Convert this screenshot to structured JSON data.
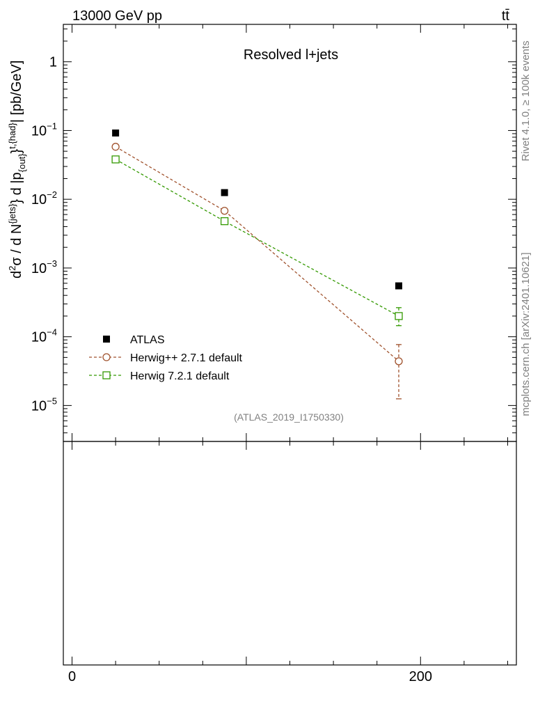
{
  "header": {
    "energy_label": "13000 GeV pp",
    "process_label": "tt̄"
  },
  "side_labels": {
    "rivet": "Rivet 4.1.0, ≥ 100k events",
    "mcplots": "mcplots.cern.ch [arXiv:2401.10621]"
  },
  "chart_data": {
    "type": "line",
    "title": "Resolved l+jets",
    "analysis_id": "(ATLAS_2019_I1750330)",
    "yscale": "log",
    "ylim": [
      3e-06,
      3.5
    ],
    "xlim": [
      -5,
      255
    ],
    "ylabel_parts": {
      "d": "d",
      "two": "2",
      "sigma_over": "σ / d N",
      "jets_sup": "{jets}",
      "mid": "} d |p",
      "out_sub": "{out}",
      "brace": "}",
      "had_sup": "t,{had}",
      "unit": "| [pb/GeV]"
    },
    "y_ticks": [
      {
        "value": 1,
        "base": "1",
        "exp": ""
      },
      {
        "value": 0.1,
        "base": "10",
        "exp": "−1"
      },
      {
        "value": 0.01,
        "base": "10",
        "exp": "−2"
      },
      {
        "value": 0.001,
        "base": "10",
        "exp": "−3"
      },
      {
        "value": 0.0001,
        "base": "10",
        "exp": "−4"
      },
      {
        "value": 1e-05,
        "base": "10",
        "exp": "−5"
      }
    ],
    "x_ticks": [
      {
        "value": 0,
        "label": "0"
      },
      {
        "value": 200,
        "label": "200"
      }
    ],
    "legend_position": "lower-left",
    "series": [
      {
        "name": "ATLAS",
        "marker": "filled-square",
        "color": "#000000",
        "line": false,
        "points": [
          {
            "x": 25,
            "y": 0.092
          },
          {
            "x": 87.5,
            "y": 0.0125
          },
          {
            "x": 187.5,
            "y": 0.00055
          }
        ]
      },
      {
        "name": "Herwig++ 2.7.1 default",
        "marker": "open-circle",
        "color": "#a0522d",
        "line": true,
        "points": [
          {
            "x": 25,
            "y": 0.058,
            "err_lo": null,
            "err_hi": null
          },
          {
            "x": 87.5,
            "y": 0.0068,
            "err_lo": null,
            "err_hi": null
          },
          {
            "x": 187.5,
            "y": 4.4e-05,
            "err_lo": 1.25e-05,
            "err_hi": 7.7e-05
          }
        ]
      },
      {
        "name": "Herwig 7.2.1 default",
        "marker": "open-square",
        "color": "#339900",
        "line": true,
        "points": [
          {
            "x": 25,
            "y": 0.038,
            "err_lo": null,
            "err_hi": null
          },
          {
            "x": 87.5,
            "y": 0.0048,
            "err_lo": null,
            "err_hi": null
          },
          {
            "x": 187.5,
            "y": 0.0002,
            "err_lo": 0.000145,
            "err_hi": 0.000265
          }
        ]
      }
    ]
  }
}
